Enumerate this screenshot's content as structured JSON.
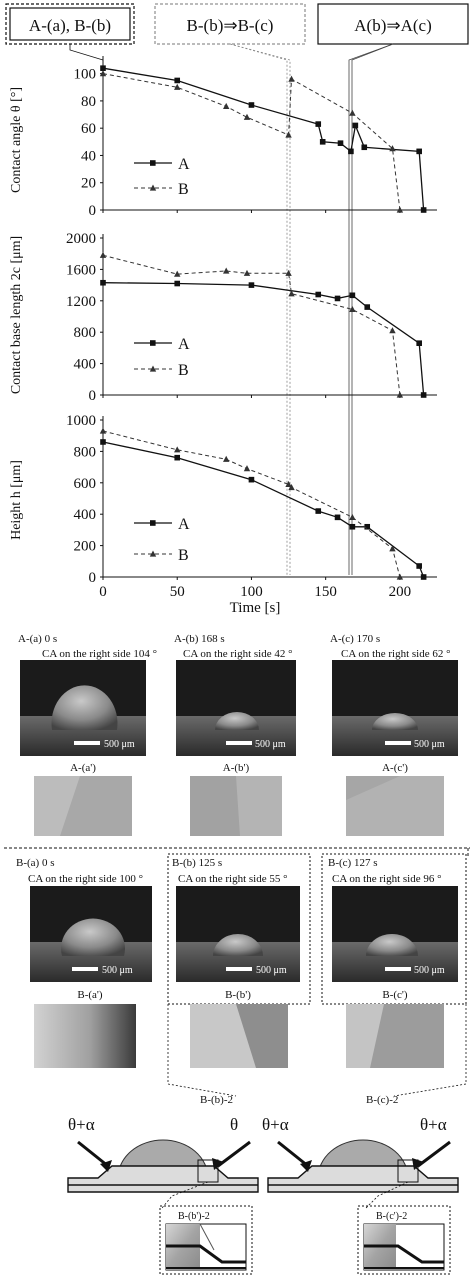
{
  "header_boxes": [
    "A-(a), B-(b)",
    "B-(b)⇒B-(c)",
    "A(b)⇒A(c)"
  ],
  "chart_data": [
    {
      "type": "line",
      "ylabel": "Contact angle θ [°]",
      "ylim": [
        0,
        110
      ],
      "yticks": [
        0,
        20,
        40,
        60,
        80,
        100
      ],
      "xlim": [
        0,
        225
      ],
      "series": [
        {
          "name": "A",
          "style": "solid",
          "marker": "square",
          "x": [
            0,
            50,
            100,
            145,
            148,
            160,
            167,
            170,
            176,
            213,
            216
          ],
          "y": [
            104,
            95,
            77,
            63,
            50,
            49,
            43,
            62,
            46,
            43,
            0
          ]
        },
        {
          "name": "B",
          "style": "dashed",
          "marker": "triangle",
          "x": [
            0,
            50,
            83,
            97,
            125,
            127,
            168,
            195,
            200
          ],
          "y": [
            100,
            90,
            76,
            68,
            55,
            96,
            71,
            45,
            0
          ]
        }
      ],
      "legend": "center-left"
    },
    {
      "type": "line",
      "ylabel": "Contact base length 2c [μm]",
      "ylim": [
        0,
        2000
      ],
      "yticks": [
        0,
        400,
        800,
        1200,
        1600,
        2000
      ],
      "xlim": [
        0,
        225
      ],
      "series": [
        {
          "name": "A",
          "style": "solid",
          "marker": "square",
          "x": [
            0,
            50,
            100,
            145,
            158,
            168,
            178,
            213,
            216
          ],
          "y": [
            1430,
            1420,
            1400,
            1280,
            1230,
            1270,
            1120,
            660,
            0
          ]
        },
        {
          "name": "B",
          "style": "dashed",
          "marker": "triangle",
          "x": [
            0,
            50,
            83,
            97,
            125,
            127,
            168,
            195,
            200
          ],
          "y": [
            1780,
            1540,
            1580,
            1550,
            1550,
            1290,
            1090,
            820,
            0
          ]
        }
      ],
      "legend": "center-left"
    },
    {
      "type": "line",
      "ylabel": "Height h [μm]",
      "xlabel": "Time [s]",
      "ylim": [
        0,
        1000
      ],
      "yticks": [
        0,
        200,
        400,
        600,
        800,
        1000
      ],
      "xlim": [
        0,
        225
      ],
      "xticks": [
        0,
        50,
        100,
        150,
        200
      ],
      "series": [
        {
          "name": "A",
          "style": "solid",
          "marker": "square",
          "x": [
            0,
            50,
            100,
            145,
            158,
            168,
            178,
            213,
            216
          ],
          "y": [
            860,
            760,
            620,
            420,
            380,
            320,
            320,
            70,
            0
          ]
        },
        {
          "name": "B",
          "style": "dashed",
          "marker": "triangle",
          "x": [
            0,
            50,
            83,
            97,
            125,
            127,
            168,
            195,
            200
          ],
          "y": [
            930,
            810,
            750,
            690,
            590,
            570,
            380,
            180,
            0
          ]
        }
      ],
      "legend": "bottom-left"
    }
  ],
  "photos_a": [
    {
      "label": "A-(a) 0 s",
      "ca": "CA on the right side 104 °",
      "scale": "500 μm",
      "sub": "A-(a')"
    },
    {
      "label": "A-(b) 168 s",
      "ca": "CA on the right side 42 °",
      "scale": "500 μm",
      "sub": "A-(b')"
    },
    {
      "label": "A-(c) 170 s",
      "ca": "CA on the right side 62 °",
      "scale": "500 μm",
      "sub": "A-(c')"
    }
  ],
  "photos_b": [
    {
      "label": "B-(a) 0 s",
      "ca": "CA on the right side 100 °",
      "scale": "500 μm",
      "sub": "B-(a')"
    },
    {
      "label": "B-(b) 125 s",
      "ca": "CA on the right side 55 °",
      "scale": "500 μm",
      "sub": "B-(b')"
    },
    {
      "label": "B-(c) 127 s",
      "ca": "CA on the right side 96 °",
      "scale": "500 μm",
      "sub": "B-(c')"
    }
  ],
  "schematics": [
    {
      "title": "B-(b)-2",
      "left": "θ+α",
      "right": "θ",
      "inset": "B-(b')-2"
    },
    {
      "title": "B-(c)-2",
      "left": "θ+α",
      "right": "θ+α",
      "inset": "B-(c')-2"
    }
  ]
}
